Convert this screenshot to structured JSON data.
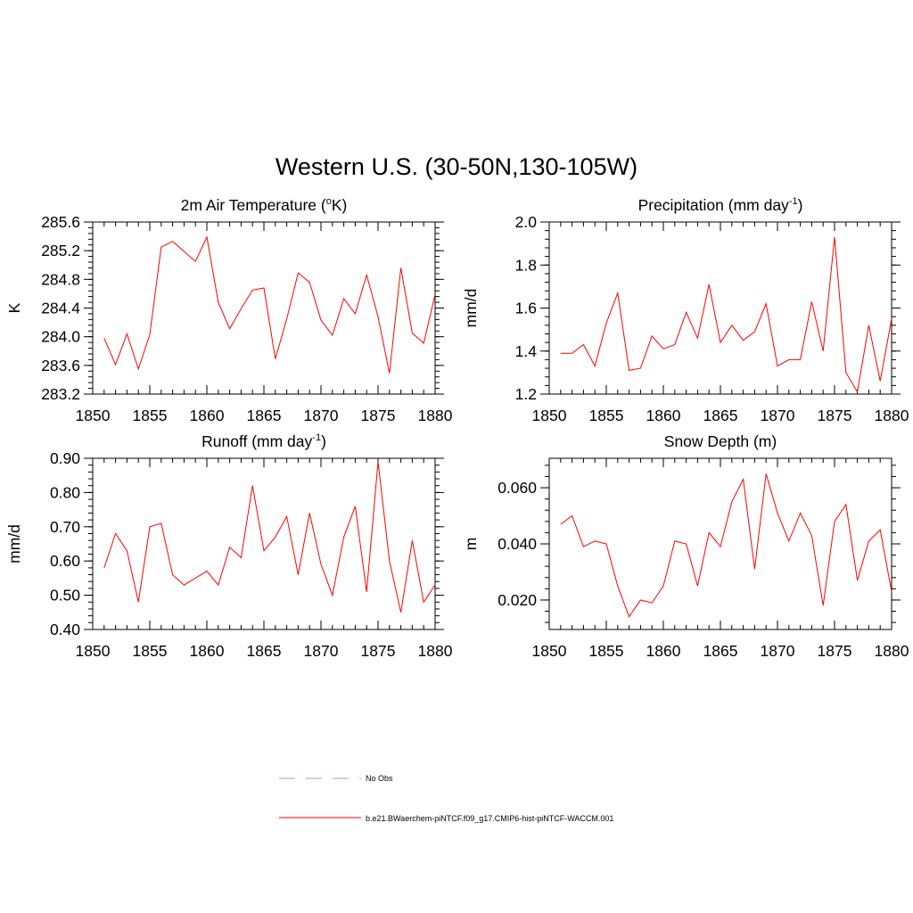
{
  "figure": {
    "title": "Western U.S. (30-50N,130-105W)"
  },
  "colors": {
    "model_line": "#ff0000",
    "obs_line": "#9999ff",
    "axis": "#000000"
  },
  "legend": {
    "placement": "bottom-center",
    "entries": [
      {
        "label": "No Obs",
        "style": "dashed",
        "color": "#9999ff"
      },
      {
        "label": "b.e21.BWaerchem-piNTCF.f09_g17.CMIP6-hist-piNTCF-WACCM.001",
        "style": "solid",
        "color": "#ff0000"
      }
    ]
  },
  "chart_data": [
    {
      "type": "line",
      "title": "2m Air Temperature (",
      "title_sup": "o",
      "title_tail": "K)",
      "ylabel": "K",
      "xlabel": "",
      "xlim": [
        1850,
        1880
      ],
      "ylim": [
        283.2,
        285.6
      ],
      "xticks": [
        1850,
        1855,
        1860,
        1865,
        1870,
        1875,
        1880
      ],
      "xtick_labels": [
        "1850",
        "1855",
        "1860",
        "1865",
        "1870",
        "1875",
        "1880"
      ],
      "yticks": [
        283.2,
        283.6,
        284.0,
        284.4,
        284.8,
        285.2,
        285.6
      ],
      "ytick_labels": [
        "283.2",
        "283.6",
        "284.0",
        "284.4",
        "284.8",
        "285.2",
        "285.6"
      ],
      "yminor": 0.08,
      "grid": false,
      "series": [
        {
          "x": [
            1851,
            1852,
            1853,
            1854,
            1855,
            1856,
            1857,
            1858,
            1859,
            1860,
            1861,
            1862,
            1863,
            1864,
            1865,
            1866,
            1867,
            1868,
            1869,
            1870,
            1871,
            1872,
            1873,
            1874,
            1875,
            1876,
            1877,
            1878,
            1879,
            1880
          ],
          "y": [
            283.98,
            283.61,
            284.04,
            283.55,
            284.03,
            285.25,
            285.33,
            285.19,
            285.05,
            285.39,
            284.48,
            284.11,
            284.39,
            284.65,
            284.68,
            283.69,
            284.25,
            284.89,
            284.76,
            284.23,
            284.02,
            284.53,
            284.32,
            284.86,
            284.28,
            283.49,
            284.96,
            284.05,
            283.91,
            284.59
          ]
        }
      ]
    },
    {
      "type": "line",
      "title": "Precipitation (mm day",
      "title_sup": "-1",
      "title_tail": ")",
      "ylabel": "mm/d",
      "xlabel": "",
      "xlim": [
        1850,
        1880
      ],
      "ylim": [
        1.2,
        2.0
      ],
      "xticks": [
        1850,
        1855,
        1860,
        1865,
        1870,
        1875,
        1880
      ],
      "xtick_labels": [
        "1850",
        "1855",
        "1860",
        "1865",
        "1870",
        "1875",
        "1880"
      ],
      "yticks": [
        1.2,
        1.4,
        1.6,
        1.8,
        2.0
      ],
      "ytick_labels": [
        "1.2",
        "1.4",
        "1.6",
        "1.8",
        "2.0"
      ],
      "yminor": 0.04,
      "grid": false,
      "series": [
        {
          "x": [
            1851,
            1852,
            1853,
            1854,
            1855,
            1856,
            1857,
            1858,
            1859,
            1860,
            1861,
            1862,
            1863,
            1864,
            1865,
            1866,
            1867,
            1868,
            1869,
            1870,
            1871,
            1872,
            1873,
            1874,
            1875,
            1876,
            1877,
            1878,
            1879,
            1880
          ],
          "y": [
            1.39,
            1.39,
            1.43,
            1.33,
            1.53,
            1.67,
            1.31,
            1.32,
            1.47,
            1.41,
            1.43,
            1.58,
            1.46,
            1.71,
            1.44,
            1.52,
            1.45,
            1.49,
            1.62,
            1.33,
            1.36,
            1.36,
            1.63,
            1.4,
            1.93,
            1.3,
            1.21,
            1.52,
            1.26,
            1.55
          ]
        }
      ]
    },
    {
      "type": "line",
      "title": "Runoff (mm day",
      "title_sup": "-1",
      "title_tail": ")",
      "ylabel": "mm/d",
      "xlabel": "",
      "xlim": [
        1850,
        1880
      ],
      "ylim": [
        0.4,
        0.9
      ],
      "xticks": [
        1850,
        1855,
        1860,
        1865,
        1870,
        1875,
        1880
      ],
      "xtick_labels": [
        "1850",
        "1855",
        "1860",
        "1865",
        "1870",
        "1875",
        "1880"
      ],
      "yticks": [
        0.4,
        0.5,
        0.6,
        0.7,
        0.8,
        0.9
      ],
      "ytick_labels": [
        "0.40",
        "0.50",
        "0.60",
        "0.70",
        "0.80",
        "0.90"
      ],
      "yminor": 0.02,
      "grid": false,
      "series": [
        {
          "x": [
            1851,
            1852,
            1853,
            1854,
            1855,
            1856,
            1857,
            1858,
            1859,
            1860,
            1861,
            1862,
            1863,
            1864,
            1865,
            1866,
            1867,
            1868,
            1869,
            1870,
            1871,
            1872,
            1873,
            1874,
            1875,
            1876,
            1877,
            1878,
            1879,
            1880
          ],
          "y": [
            0.58,
            0.68,
            0.63,
            0.48,
            0.7,
            0.71,
            0.56,
            0.53,
            0.55,
            0.57,
            0.53,
            0.64,
            0.61,
            0.82,
            0.63,
            0.67,
            0.73,
            0.56,
            0.74,
            0.59,
            0.5,
            0.67,
            0.76,
            0.51,
            0.89,
            0.6,
            0.45,
            0.66,
            0.48,
            0.53
          ]
        }
      ]
    },
    {
      "type": "line",
      "title": "Snow Depth (m)",
      "title_sup": "",
      "title_tail": "",
      "ylabel": "m",
      "xlabel": "",
      "xlim": [
        1850,
        1880
      ],
      "ylim": [
        0.0095,
        0.0705
      ],
      "xticks": [
        1850,
        1855,
        1860,
        1865,
        1870,
        1875,
        1880
      ],
      "xtick_labels": [
        "1850",
        "1855",
        "1860",
        "1865",
        "1870",
        "1875",
        "1880"
      ],
      "yticks": [
        0.02,
        0.04,
        0.06
      ],
      "ytick_labels": [
        "0.020",
        "0.040",
        "0.060"
      ],
      "yminor": 0.004,
      "grid": false,
      "series": [
        {
          "x": [
            1851,
            1852,
            1853,
            1854,
            1855,
            1856,
            1857,
            1858,
            1859,
            1860,
            1861,
            1862,
            1863,
            1864,
            1865,
            1866,
            1867,
            1868,
            1869,
            1870,
            1871,
            1872,
            1873,
            1874,
            1875,
            1876,
            1877,
            1878,
            1879,
            1880
          ],
          "y": [
            0.047,
            0.05,
            0.039,
            0.041,
            0.04,
            0.025,
            0.014,
            0.02,
            0.019,
            0.025,
            0.041,
            0.04,
            0.025,
            0.044,
            0.039,
            0.055,
            0.063,
            0.031,
            0.065,
            0.051,
            0.041,
            0.051,
            0.043,
            0.018,
            0.048,
            0.054,
            0.027,
            0.041,
            0.045,
            0.023
          ]
        }
      ]
    }
  ]
}
